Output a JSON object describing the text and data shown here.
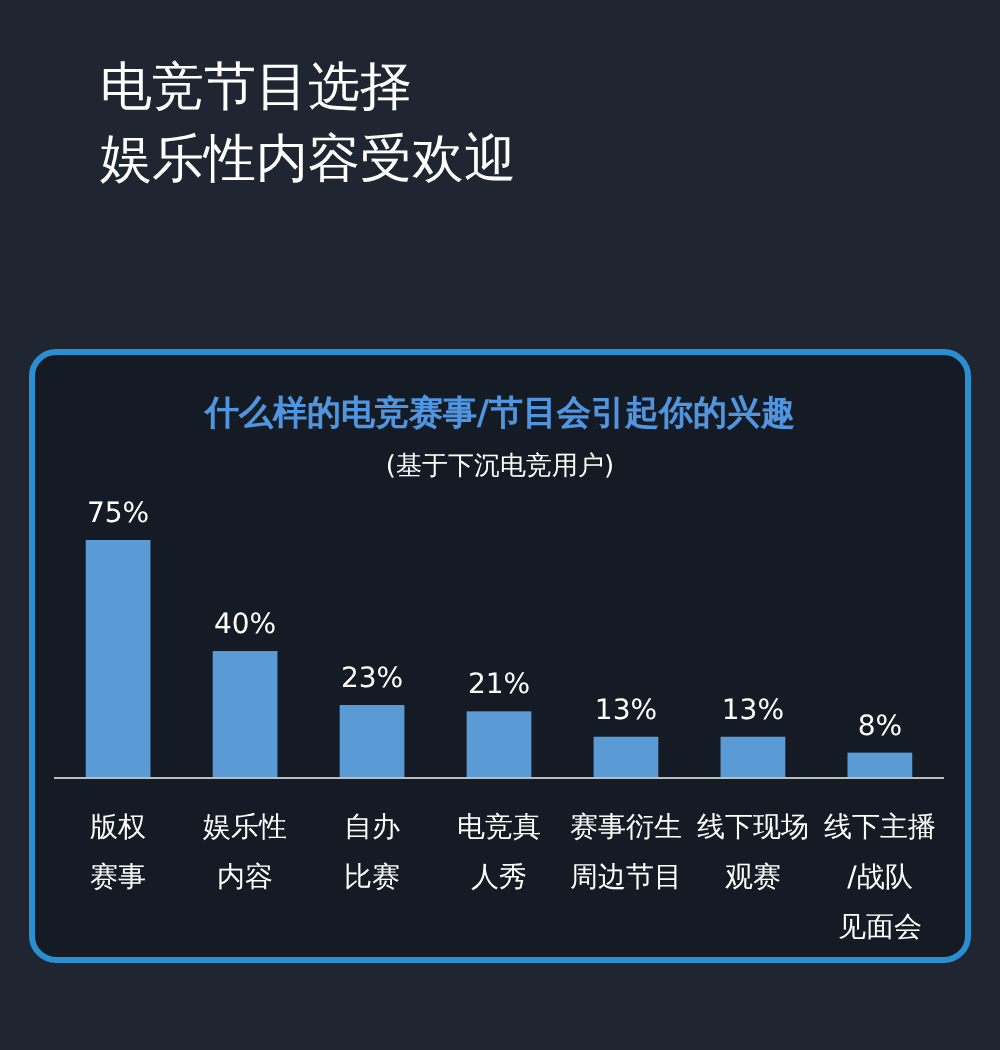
{
  "chart_data": {
    "type": "bar",
    "title": "电竞节目选择娱乐性内容受欢迎",
    "subtitle": "什么样的电竞赛事/节目会引起你的兴趣",
    "annotations": [
      "(基于下沉电竞用户)"
    ],
    "categories": [
      "版权赛事",
      "娱乐性内容",
      "自办比赛",
      "电竞真人秀",
      "赛事衍生周边节目",
      "线下现场观赛",
      "线下主播/战队见面会"
    ],
    "values": [
      75,
      40,
      23,
      21,
      13,
      13,
      8
    ],
    "value_labels": [
      "75%",
      "40%",
      "23%",
      "21%",
      "13%",
      "13%",
      "8%"
    ],
    "color": "#5b9bd5"
  }
}
